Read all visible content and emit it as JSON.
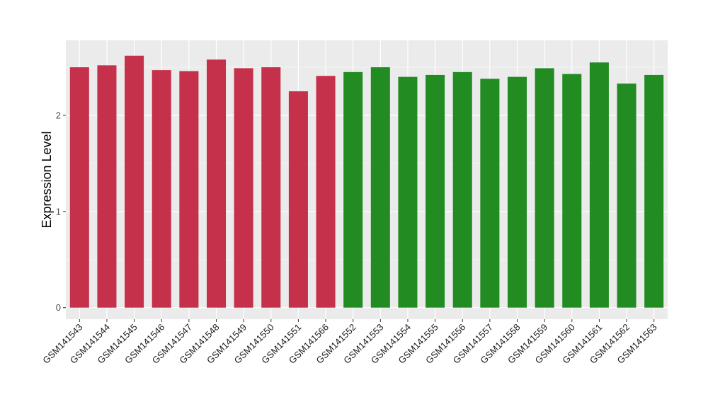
{
  "chart_data": {
    "type": "bar",
    "title": "",
    "xlabel": "",
    "ylabel": "Expression Level",
    "ylim": [
      -0.12,
      2.78
    ],
    "yticks": [
      0,
      1,
      2
    ],
    "grid": true,
    "legend": "none",
    "colors": {
      "panel": "#ebebeb",
      "grid_major": "#ffffff",
      "grid_minor": "#f5f5f5",
      "group_a": "#c5304a",
      "group_b": "#228b22"
    },
    "bars": [
      {
        "label": "GSM141543",
        "value": 2.5,
        "group": "group_a"
      },
      {
        "label": "GSM141544",
        "value": 2.52,
        "group": "group_a"
      },
      {
        "label": "GSM141545",
        "value": 2.62,
        "group": "group_a"
      },
      {
        "label": "GSM141546",
        "value": 2.47,
        "group": "group_a"
      },
      {
        "label": "GSM141547",
        "value": 2.46,
        "group": "group_a"
      },
      {
        "label": "GSM141548",
        "value": 2.58,
        "group": "group_a"
      },
      {
        "label": "GSM141549",
        "value": 2.49,
        "group": "group_a"
      },
      {
        "label": "GSM141550",
        "value": 2.5,
        "group": "group_a"
      },
      {
        "label": "GSM141551",
        "value": 2.25,
        "group": "group_a"
      },
      {
        "label": "GSM141566",
        "value": 2.41,
        "group": "group_a"
      },
      {
        "label": "GSM141552",
        "value": 2.45,
        "group": "group_b"
      },
      {
        "label": "GSM141553",
        "value": 2.5,
        "group": "group_b"
      },
      {
        "label": "GSM141554",
        "value": 2.4,
        "group": "group_b"
      },
      {
        "label": "GSM141555",
        "value": 2.42,
        "group": "group_b"
      },
      {
        "label": "GSM141556",
        "value": 2.45,
        "group": "group_b"
      },
      {
        "label": "GSM141557",
        "value": 2.38,
        "group": "group_b"
      },
      {
        "label": "GSM141558",
        "value": 2.4,
        "group": "group_b"
      },
      {
        "label": "GSM141559",
        "value": 2.49,
        "group": "group_b"
      },
      {
        "label": "GSM141560",
        "value": 2.43,
        "group": "group_b"
      },
      {
        "label": "GSM141561",
        "value": 2.55,
        "group": "group_b"
      },
      {
        "label": "GSM141562",
        "value": 2.33,
        "group": "group_b"
      },
      {
        "label": "GSM141563",
        "value": 2.42,
        "group": "group_b"
      }
    ]
  }
}
